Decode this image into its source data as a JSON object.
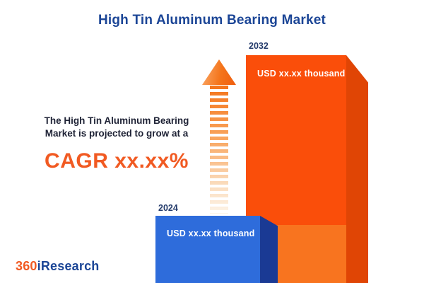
{
  "title": "High Tin Aluminum Bearing Market",
  "description": {
    "line1": "The High Tin Aluminum Bearing",
    "line2": "Market is projected to grow at a",
    "cagr": "CAGR xx.xx%"
  },
  "chart_data": {
    "type": "bar",
    "title": "High Tin Aluminum Bearing Market",
    "categories": [
      "2024",
      "2032"
    ],
    "values": [
      "xx.xx",
      "xx.xx"
    ],
    "unit": "USD thousand",
    "bar_labels": [
      "USD xx.xx thousand",
      "USD xx.xx thousand"
    ],
    "bar_colors": [
      "#2E6CDB",
      "#FA4E0A"
    ],
    "annotation": "CAGR xx.xx%",
    "legend_position": "none",
    "grid": false
  },
  "logo": {
    "prefix": "360",
    "suffix": "iResearch"
  },
  "icons": {
    "growth_arrow": "up-arrow-fading-stripes"
  },
  "colors": {
    "title_navy": "#1B4596",
    "accent_orange": "#F15A22",
    "bar_2032_front": "#FA4E0A",
    "bar_2032_side": "#E04505",
    "bar_2024_front": "#2E6CDB",
    "bar_2024_side": "#1A3A94",
    "background": "#FFFFFF",
    "value_text": "#FFFFFF"
  }
}
